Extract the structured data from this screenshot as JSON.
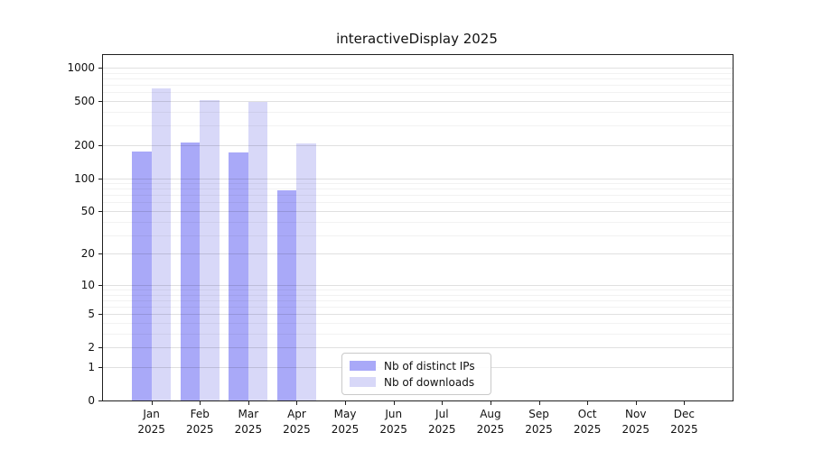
{
  "chart_data": {
    "type": "bar",
    "title": "interactiveDisplay 2025",
    "categories": [
      "Jan 2025",
      "Feb 2025",
      "Mar 2025",
      "Apr 2025",
      "May 2025",
      "Jun 2025",
      "Jul 2025",
      "Aug 2025",
      "Sep 2025",
      "Oct 2025",
      "Nov 2025",
      "Dec 2025"
    ],
    "series": [
      {
        "name": "Nb of distinct IPs",
        "color": "#a9a9f8",
        "values": [
          176,
          212,
          172,
          77,
          null,
          null,
          null,
          null,
          null,
          null,
          null,
          null
        ]
      },
      {
        "name": "Nb of downloads",
        "color": "#d8d8f8",
        "values": [
          645,
          507,
          494,
          208,
          null,
          null,
          null,
          null,
          null,
          null,
          null,
          null
        ]
      }
    ],
    "yscale": "log1p",
    "ylim": [
      0,
      1300
    ],
    "y_ticks": [
      0,
      1,
      2,
      5,
      10,
      20,
      50,
      100,
      200,
      500,
      1000
    ],
    "y_minor_gridlines": [
      3,
      4,
      6,
      7,
      8,
      9,
      30,
      40,
      60,
      70,
      80,
      90,
      300,
      400,
      600,
      700,
      800,
      900
    ],
    "grid": true,
    "legend_position": "lower center inside plot"
  }
}
